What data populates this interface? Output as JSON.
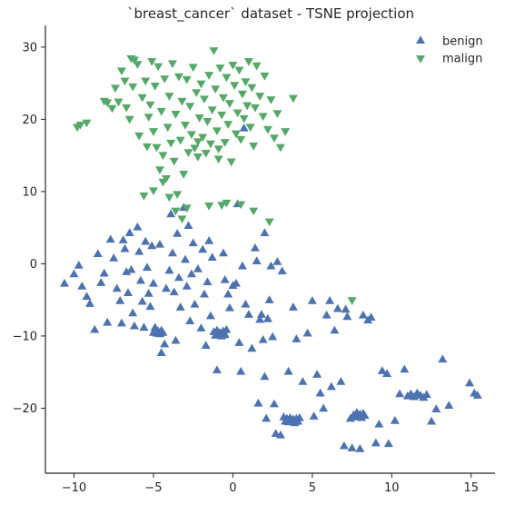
{
  "chart_data": {
    "type": "scatter",
    "title": "`breast_cancer` dataset - TSNE projection",
    "xlabel": "",
    "ylabel": "",
    "xlim": [
      -11.8,
      16.5
    ],
    "ylim": [
      -29,
      33
    ],
    "xticks": [
      -10,
      -5,
      0,
      5,
      10,
      15
    ],
    "xtick_labels": [
      "−10",
      "−5",
      "0",
      "5",
      "10",
      "15"
    ],
    "yticks": [
      -20,
      -10,
      0,
      10,
      20,
      30
    ],
    "ytick_labels": [
      "−20",
      "−10",
      "0",
      "10",
      "20",
      "30"
    ],
    "grid": false,
    "legend_position": "top-right",
    "series": [
      {
        "name": "benign",
        "marker": "triangle-up",
        "color": "#4c72b0",
        "points": [
          [
            -10.6,
            -2.8
          ],
          [
            -10.0,
            -1.5
          ],
          [
            -9.7,
            -0.3
          ],
          [
            -9.5,
            -3.2
          ],
          [
            -9.2,
            -4.6
          ],
          [
            -9.0,
            -5.6
          ],
          [
            -8.7,
            -9.2
          ],
          [
            -8.5,
            1.3
          ],
          [
            -8.3,
            -2.7
          ],
          [
            -8.1,
            -1.4
          ],
          [
            -7.9,
            -8.2
          ],
          [
            -7.7,
            3.3
          ],
          [
            -7.5,
            0.7
          ],
          [
            -7.3,
            -3.5
          ],
          [
            -7.1,
            -5.2
          ],
          [
            -7.0,
            -8.3
          ],
          [
            -6.9,
            3.2
          ],
          [
            -6.8,
            2.0
          ],
          [
            -6.7,
            -1.2
          ],
          [
            -6.6,
            -4.1
          ],
          [
            -6.5,
            4.2
          ],
          [
            -6.4,
            -0.9
          ],
          [
            -6.3,
            -6.9
          ],
          [
            -6.2,
            -8.7
          ],
          [
            -6.0,
            5.0
          ],
          [
            -5.9,
            1.6
          ],
          [
            -5.8,
            -2.4
          ],
          [
            -5.7,
            -5.3
          ],
          [
            -5.6,
            -8.9
          ],
          [
            -5.5,
            3.0
          ],
          [
            -5.4,
            -0.6
          ],
          [
            -5.3,
            -4.2
          ],
          [
            -5.2,
            -6.0
          ],
          [
            -5.1,
            2.4
          ],
          [
            -5.0,
            -2.8
          ],
          [
            -5.0,
            -9.6
          ],
          [
            -4.9,
            -9.2
          ],
          [
            -4.8,
            -9.7
          ],
          [
            -4.7,
            -9.4
          ],
          [
            -4.6,
            -9.8
          ],
          [
            -4.5,
            -9.3
          ],
          [
            -4.4,
            -9.6
          ],
          [
            -4.9,
            -8.9
          ],
          [
            -4.6,
            2.6
          ],
          [
            -4.5,
            -12.4
          ],
          [
            -4.3,
            -11.2
          ],
          [
            -4.2,
            -3.5
          ],
          [
            -4.0,
            -1.0
          ],
          [
            -3.9,
            6.8
          ],
          [
            -3.8,
            1.4
          ],
          [
            -3.7,
            -4.0
          ],
          [
            -3.6,
            -10.7
          ],
          [
            -3.5,
            4.1
          ],
          [
            -3.4,
            -2.0
          ],
          [
            -3.3,
            -6.1
          ],
          [
            -3.1,
            7.7
          ],
          [
            -3.0,
            0.5
          ],
          [
            -2.9,
            -3.2
          ],
          [
            -2.8,
            5.2
          ],
          [
            -2.7,
            -8.0
          ],
          [
            -2.6,
            -1.5
          ],
          [
            -2.5,
            2.8
          ],
          [
            -2.4,
            -5.7
          ],
          [
            -2.2,
            -0.8
          ],
          [
            -2.0,
            -9.0
          ],
          [
            -1.9,
            1.9
          ],
          [
            -1.8,
            -4.3
          ],
          [
            -1.7,
            -11.4
          ],
          [
            -1.6,
            -2.6
          ],
          [
            -1.5,
            3.1
          ],
          [
            -1.4,
            -7.3
          ],
          [
            -1.3,
            0.8
          ],
          [
            -1.2,
            -9.5
          ],
          [
            -1.1,
            -10.0
          ],
          [
            -1.0,
            -9.3
          ],
          [
            -0.9,
            -9.8
          ],
          [
            -0.8,
            -9.6
          ],
          [
            -0.7,
            -10.1
          ],
          [
            -0.6,
            -9.4
          ],
          [
            -0.5,
            -9.9
          ],
          [
            -0.4,
            -9.2
          ],
          [
            -1.0,
            -14.8
          ],
          [
            -0.6,
            1.4
          ],
          [
            -0.5,
            -2.3
          ],
          [
            -0.3,
            -4.3
          ],
          [
            -0.2,
            -6.2
          ],
          [
            0.0,
            -3.1
          ],
          [
            0.2,
            -2.8
          ],
          [
            0.3,
            8.2
          ],
          [
            0.4,
            -11.0
          ],
          [
            0.5,
            -15.0
          ],
          [
            0.6,
            -0.4
          ],
          [
            0.7,
            18.7
          ],
          [
            0.8,
            -5.7
          ],
          [
            1.0,
            -7.1
          ],
          [
            1.2,
            -11.8
          ],
          [
            1.4,
            2.1
          ],
          [
            1.5,
            0.3
          ],
          [
            1.6,
            -19.4
          ],
          [
            1.7,
            -7.8
          ],
          [
            1.8,
            -7.1
          ],
          [
            1.9,
            -10.6
          ],
          [
            2.0,
            -15.7
          ],
          [
            2.0,
            4.2
          ],
          [
            2.1,
            -21.5
          ],
          [
            2.2,
            -7.7
          ],
          [
            2.3,
            -5.1
          ],
          [
            2.4,
            -0.4
          ],
          [
            2.5,
            -10.2
          ],
          [
            2.6,
            -19.5
          ],
          [
            2.7,
            -23.6
          ],
          [
            2.8,
            0.2
          ],
          [
            3.0,
            -23.8
          ],
          [
            3.1,
            -1.1
          ],
          [
            3.2,
            -21.3
          ],
          [
            3.3,
            -21.9
          ],
          [
            3.4,
            -21.5
          ],
          [
            3.5,
            -22.0
          ],
          [
            3.6,
            -21.4
          ],
          [
            3.7,
            -21.8
          ],
          [
            3.8,
            -21.6
          ],
          [
            3.9,
            -22.1
          ],
          [
            4.0,
            -21.5
          ],
          [
            4.1,
            -21.9
          ],
          [
            4.2,
            -21.4
          ],
          [
            3.5,
            -15.0
          ],
          [
            3.8,
            -6.1
          ],
          [
            4.0,
            -10.5
          ],
          [
            4.4,
            -16.4
          ],
          [
            4.7,
            -9.7
          ],
          [
            5.0,
            -5.2
          ],
          [
            5.1,
            -21.2
          ],
          [
            5.3,
            -15.4
          ],
          [
            5.5,
            -18.0
          ],
          [
            5.7,
            -20.1
          ],
          [
            5.9,
            -7.2
          ],
          [
            6.1,
            -5.2
          ],
          [
            6.2,
            -17.1
          ],
          [
            6.4,
            -9.3
          ],
          [
            6.6,
            -6.3
          ],
          [
            6.8,
            -16.4
          ],
          [
            7.0,
            -25.3
          ],
          [
            7.1,
            -6.4
          ],
          [
            7.2,
            -7.4
          ],
          [
            7.4,
            -21.5
          ],
          [
            7.5,
            -25.6
          ],
          [
            7.6,
            -21.0
          ],
          [
            7.7,
            -21.3
          ],
          [
            7.8,
            -20.7
          ],
          [
            7.9,
            -21.2
          ],
          [
            8.0,
            -20.9
          ],
          [
            8.1,
            -21.4
          ],
          [
            8.2,
            -20.8
          ],
          [
            8.3,
            -21.1
          ],
          [
            8.2,
            -7.2
          ],
          [
            8.0,
            -25.7
          ],
          [
            8.5,
            -7.9
          ],
          [
            8.7,
            -7.5
          ],
          [
            9.0,
            -24.9
          ],
          [
            9.2,
            -22.3
          ],
          [
            9.4,
            -14.9
          ],
          [
            9.7,
            -15.3
          ],
          [
            9.8,
            -25.0
          ],
          [
            10.2,
            -21.8
          ],
          [
            10.5,
            -18.1
          ],
          [
            10.8,
            -14.7
          ],
          [
            11.0,
            -18.4
          ],
          [
            11.2,
            -18.1
          ],
          [
            11.4,
            -18.5
          ],
          [
            11.6,
            -18.0
          ],
          [
            11.8,
            -18.3
          ],
          [
            12.0,
            -18.6
          ],
          [
            12.2,
            -18.2
          ],
          [
            12.5,
            -21.9
          ],
          [
            12.8,
            -20.2
          ],
          [
            13.2,
            -13.3
          ],
          [
            13.6,
            -19.7
          ],
          [
            14.9,
            -16.6
          ],
          [
            15.2,
            -18.0
          ],
          [
            15.4,
            -18.3
          ]
        ]
      },
      {
        "name": "malign",
        "marker": "triangle-down",
        "color": "#55a868",
        "points": [
          [
            -9.8,
            19.0
          ],
          [
            -9.6,
            19.3
          ],
          [
            -9.2,
            19.6
          ],
          [
            -8.1,
            22.6
          ],
          [
            -7.9,
            22.4
          ],
          [
            -7.6,
            21.6
          ],
          [
            -7.4,
            24.4
          ],
          [
            -7.2,
            22.5
          ],
          [
            -7.0,
            26.8
          ],
          [
            -6.8,
            25.4
          ],
          [
            -6.7,
            21.7
          ],
          [
            -6.5,
            20.1
          ],
          [
            -6.3,
            24.6
          ],
          [
            -6.2,
            28.3
          ],
          [
            -6.0,
            27.7
          ],
          [
            -5.9,
            17.8
          ],
          [
            -5.7,
            23.1
          ],
          [
            -5.5,
            25.4
          ],
          [
            -5.4,
            16.3
          ],
          [
            -5.3,
            20.4
          ],
          [
            -5.2,
            22.1
          ],
          [
            -5.1,
            28.1
          ],
          [
            -5.0,
            18.4
          ],
          [
            -4.9,
            24.7
          ],
          [
            -4.8,
            16.2
          ],
          [
            -4.7,
            27.4
          ],
          [
            -4.6,
            13.1
          ],
          [
            -4.5,
            21.2
          ],
          [
            -4.4,
            15.1
          ],
          [
            -4.3,
            25.7
          ],
          [
            -4.2,
            11.9
          ],
          [
            -4.1,
            19.0
          ],
          [
            -4.0,
            23.3
          ],
          [
            -3.9,
            16.8
          ],
          [
            -3.8,
            27.8
          ],
          [
            -3.7,
            14.3
          ],
          [
            -3.6,
            20.8
          ],
          [
            -3.5,
            9.7
          ],
          [
            -3.4,
            26.0
          ],
          [
            -3.3,
            17.2
          ],
          [
            -3.2,
            22.6
          ],
          [
            -3.1,
            12.5
          ],
          [
            -3.0,
            19.3
          ],
          [
            -2.9,
            25.6
          ],
          [
            -2.8,
            15.5
          ],
          [
            -2.7,
            21.9
          ],
          [
            -2.6,
            18.0
          ],
          [
            -2.5,
            27.3
          ],
          [
            -2.4,
            16.1
          ],
          [
            -2.3,
            23.8
          ],
          [
            -2.2,
            14.9
          ],
          [
            -2.1,
            20.3
          ],
          [
            -2.0,
            25.0
          ],
          [
            -1.9,
            17.6
          ],
          [
            -1.8,
            22.9
          ],
          [
            -1.7,
            15.4
          ],
          [
            -1.6,
            19.8
          ],
          [
            -1.5,
            26.2
          ],
          [
            -1.4,
            16.7
          ],
          [
            -1.3,
            21.4
          ],
          [
            -1.2,
            29.6
          ],
          [
            -1.1,
            24.3
          ],
          [
            -1.0,
            18.5
          ],
          [
            -0.9,
            14.6
          ],
          [
            -0.8,
            27.2
          ],
          [
            -0.7,
            20.7
          ],
          [
            -0.6,
            23.1
          ],
          [
            -0.5,
            16.9
          ],
          [
            -0.4,
            25.9
          ],
          [
            -0.3,
            19.4
          ],
          [
            -0.2,
            22.3
          ],
          [
            -0.1,
            14.2
          ],
          [
            0.0,
            27.6
          ],
          [
            0.1,
            24.8
          ],
          [
            0.2,
            18.1
          ],
          [
            0.3,
            21.0
          ],
          [
            0.4,
            26.9
          ],
          [
            0.5,
            17.3
          ],
          [
            0.6,
            23.6
          ],
          [
            0.7,
            20.2
          ],
          [
            0.8,
            25.3
          ],
          [
            0.9,
            22.0
          ],
          [
            1.0,
            28.1
          ],
          [
            1.1,
            19.0
          ],
          [
            1.2,
            24.5
          ],
          [
            1.3,
            16.4
          ],
          [
            1.4,
            21.7
          ],
          [
            1.5,
            27.5
          ],
          [
            1.7,
            23.3
          ],
          [
            1.9,
            20.5
          ],
          [
            2.0,
            26.1
          ],
          [
            2.2,
            18.7
          ],
          [
            2.4,
            22.8
          ],
          [
            2.6,
            17.5
          ],
          [
            2.8,
            20.9
          ],
          [
            3.0,
            16.2
          ],
          [
            3.3,
            18.4
          ],
          [
            3.8,
            23.0
          ],
          [
            -6.4,
            28.5
          ],
          [
            -5.6,
            9.5
          ],
          [
            -5.0,
            10.2
          ],
          [
            -4.4,
            11.4
          ],
          [
            -4.0,
            9.3
          ],
          [
            -3.6,
            7.4
          ],
          [
            -3.2,
            6.3
          ],
          [
            -2.9,
            7.8
          ],
          [
            -1.5,
            8.1
          ],
          [
            -0.7,
            8.2
          ],
          [
            -0.4,
            8.5
          ],
          [
            0.5,
            8.3
          ],
          [
            1.3,
            7.4
          ],
          [
            2.3,
            5.9
          ],
          [
            7.5,
            -5.0
          ],
          [
            -2.2,
            17.0
          ],
          [
            -0.9,
            16.0
          ]
        ]
      }
    ]
  }
}
